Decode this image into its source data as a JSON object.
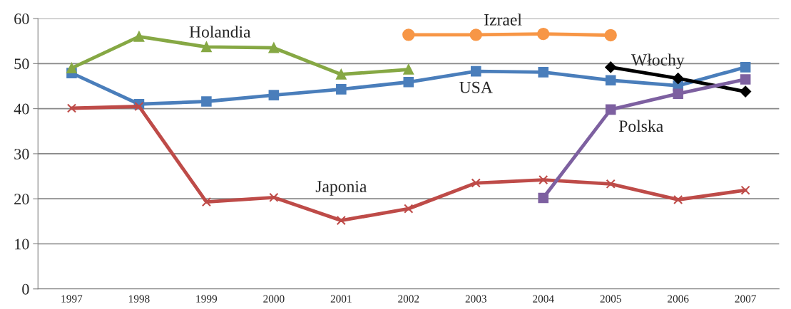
{
  "chart_data": {
    "type": "line",
    "categories": [
      "1997",
      "1998",
      "1999",
      "2000",
      "2001",
      "2002",
      "2003",
      "2004",
      "2005",
      "2006",
      "2007"
    ],
    "ylim": [
      0,
      60
    ],
    "yticks": [
      0,
      10,
      20,
      30,
      40,
      50,
      60
    ],
    "grid": "y",
    "series": [
      {
        "name": "USA",
        "color": "#4a7ebb",
        "marker": "square",
        "values": [
          47.9,
          41.0,
          41.6,
          43.0,
          44.3,
          45.9,
          48.3,
          48.1,
          46.3,
          45.1,
          49.2
        ]
      },
      {
        "name": "Japonia",
        "color": "#be4b48",
        "marker": "cross",
        "values": [
          40.1,
          40.5,
          19.3,
          20.3,
          15.2,
          17.8,
          23.5,
          24.2,
          23.3,
          19.8,
          21.9
        ]
      },
      {
        "name": "Holandia",
        "color": "#86a844",
        "marker": "triangle",
        "values": [
          49.0,
          56.0,
          53.7,
          53.5,
          47.6,
          48.7,
          null,
          null,
          null,
          null,
          null
        ]
      },
      {
        "name": "Izrael",
        "color": "#f79646",
        "marker": "circle",
        "values": [
          null,
          null,
          null,
          null,
          null,
          56.4,
          56.4,
          56.6,
          56.3,
          null,
          null
        ]
      },
      {
        "name": "Włochy",
        "color": "#000000",
        "marker": "diamond",
        "values": [
          null,
          null,
          null,
          null,
          null,
          null,
          null,
          null,
          49.2,
          46.7,
          43.8
        ]
      },
      {
        "name": "Polska",
        "color": "#7d60a0",
        "marker": "square",
        "values": [
          null,
          null,
          null,
          null,
          null,
          null,
          null,
          20.2,
          39.8,
          43.3,
          46.5
        ]
      }
    ]
  }
}
